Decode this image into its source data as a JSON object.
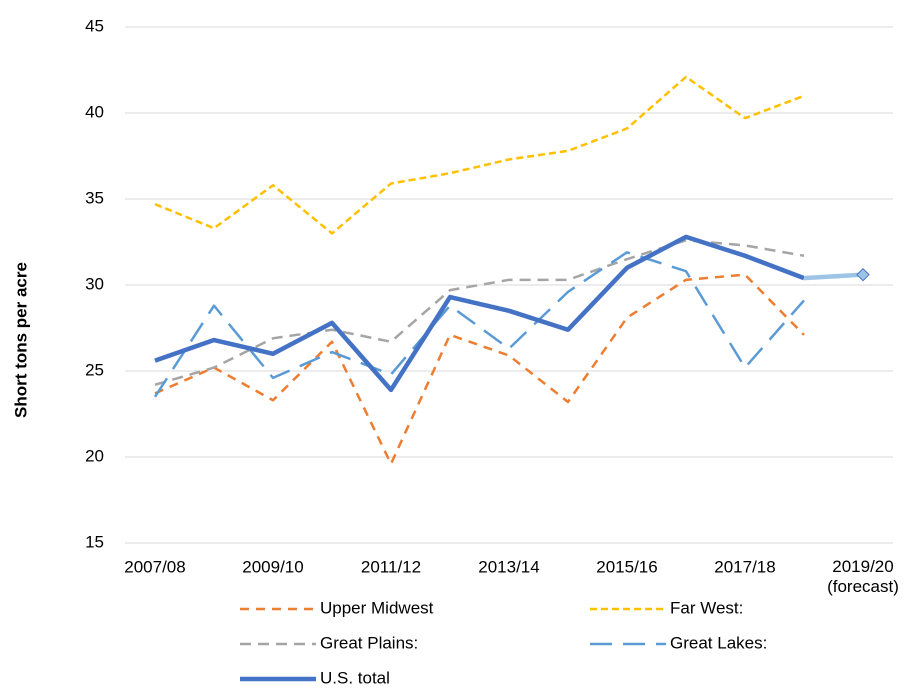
{
  "chart_data": {
    "type": "line",
    "y_label": "Short tons per acre",
    "categories": [
      "2007/08",
      null,
      "2009/10",
      null,
      "2011/12",
      null,
      "2013/14",
      null,
      "2015/16",
      null,
      "2017/18",
      null,
      "2019/20\n(forecast)"
    ],
    "ylim": [
      15,
      45
    ],
    "yticks": [
      15,
      20,
      25,
      30,
      35,
      40,
      45
    ],
    "grid": true,
    "series": [
      {
        "name": "Upper Midwest",
        "color": "#ed7d31",
        "dash": "9,7",
        "width": 2.5,
        "values": [
          23.7,
          25.2,
          23.3,
          26.7,
          19.6,
          27.1,
          25.9,
          23.2,
          28.1,
          30.3,
          30.6,
          27.1,
          null
        ]
      },
      {
        "name": "Far West:",
        "color": "#ffc000",
        "dash": "7,4",
        "width": 2.5,
        "values": [
          34.7,
          33.3,
          35.8,
          33.0,
          35.9,
          36.5,
          37.3,
          37.8,
          39.1,
          42.1,
          39.7,
          41.0,
          null
        ]
      },
      {
        "name": "Great Plains:",
        "color": "#a5a5a5",
        "dash": "11,7",
        "width": 2.5,
        "values": [
          24.2,
          25.2,
          26.9,
          27.4,
          26.7,
          29.7,
          30.3,
          30.3,
          31.5,
          32.6,
          32.3,
          31.7,
          null
        ]
      },
      {
        "name": "Great Lakes:",
        "color": "#5b9bd5",
        "dash": "22,11",
        "width": 2.5,
        "values": [
          23.5,
          28.8,
          24.6,
          26.1,
          24.8,
          28.8,
          26.3,
          29.6,
          31.9,
          30.8,
          25.2,
          29.1,
          null
        ]
      },
      {
        "name": "U.S. total",
        "color": "#4472c4",
        "width": 4.5,
        "forecast_color": "#9dc3e6",
        "values": [
          25.6,
          26.8,
          26.0,
          27.8,
          23.9,
          29.3,
          28.5,
          27.4,
          31.0,
          32.8,
          31.7,
          30.4,
          30.6
        ]
      }
    ]
  }
}
